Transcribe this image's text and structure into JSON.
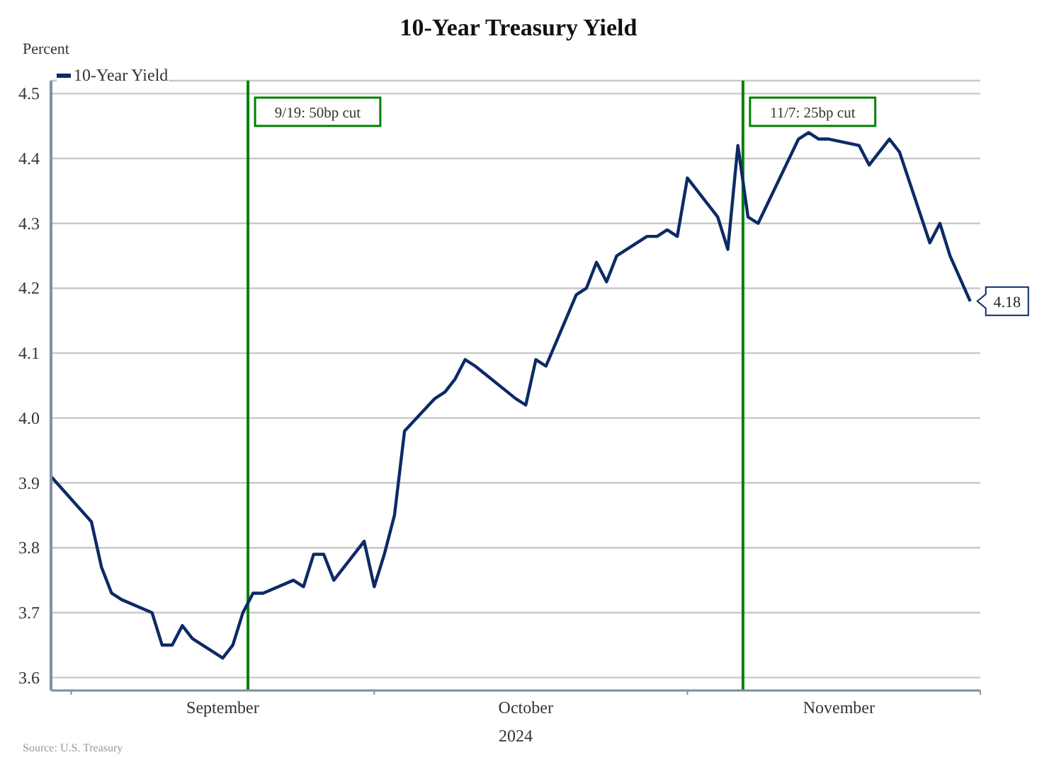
{
  "chart_data": {
    "type": "line",
    "title": "10-Year Treasury Yield",
    "ylabel": "Percent",
    "xlabel": "2024",
    "x": [
      "2024-08-30",
      "2024-09-03",
      "2024-09-04",
      "2024-09-05",
      "2024-09-06",
      "2024-09-09",
      "2024-09-10",
      "2024-09-11",
      "2024-09-12",
      "2024-09-13",
      "2024-09-16",
      "2024-09-17",
      "2024-09-18",
      "2024-09-19",
      "2024-09-20",
      "2024-09-23",
      "2024-09-24",
      "2024-09-25",
      "2024-09-26",
      "2024-09-27",
      "2024-09-30",
      "2024-10-01",
      "2024-10-02",
      "2024-10-03",
      "2024-10-04",
      "2024-10-07",
      "2024-10-08",
      "2024-10-09",
      "2024-10-10",
      "2024-10-11",
      "2024-10-15",
      "2024-10-16",
      "2024-10-17",
      "2024-10-18",
      "2024-10-21",
      "2024-10-22",
      "2024-10-23",
      "2024-10-24",
      "2024-10-25",
      "2024-10-28",
      "2024-10-29",
      "2024-10-30",
      "2024-10-31",
      "2024-11-01",
      "2024-11-04",
      "2024-11-05",
      "2024-11-06",
      "2024-11-07",
      "2024-11-08",
      "2024-11-12",
      "2024-11-13",
      "2024-11-14",
      "2024-11-15",
      "2024-11-18",
      "2024-11-19",
      "2024-11-20",
      "2024-11-21",
      "2024-11-22",
      "2024-11-25",
      "2024-11-26",
      "2024-11-27",
      "2024-11-29"
    ],
    "series": [
      {
        "name": "10-Year Yield",
        "color": "#0d2a66",
        "values": [
          3.91,
          3.84,
          3.77,
          3.73,
          3.72,
          3.7,
          3.65,
          3.65,
          3.68,
          3.66,
          3.63,
          3.65,
          3.7,
          3.73,
          3.73,
          3.75,
          3.74,
          3.79,
          3.79,
          3.75,
          3.81,
          3.74,
          3.79,
          3.85,
          3.98,
          4.03,
          4.04,
          4.06,
          4.09,
          4.08,
          4.03,
          4.02,
          4.09,
          4.08,
          4.19,
          4.2,
          4.24,
          4.21,
          4.25,
          4.28,
          4.28,
          4.29,
          4.28,
          4.37,
          4.31,
          4.26,
          4.42,
          4.31,
          4.3,
          4.43,
          4.44,
          4.43,
          4.43,
          4.42,
          4.39,
          4.41,
          4.43,
          4.41,
          4.27,
          4.3,
          4.25,
          4.18
        ],
        "value_labels": [
          null,
          null,
          null,
          null,
          null,
          null,
          null,
          null,
          null,
          null,
          null,
          null,
          null,
          null,
          null,
          null,
          null,
          null,
          null,
          null,
          null,
          null,
          null,
          null,
          null,
          null,
          null,
          null,
          null,
          null,
          null,
          null,
          null,
          null,
          null,
          null,
          null,
          null,
          null,
          null,
          null,
          null,
          null,
          null,
          null,
          null,
          null,
          null,
          null,
          null,
          null,
          null,
          null,
          null,
          null,
          null,
          null,
          null,
          null,
          null,
          null,
          "4.18"
        ]
      }
    ],
    "xlim": [
      "2024-08-30",
      "2024-11-30"
    ],
    "xticks": [
      {
        "value": "2024-09-01",
        "label": null
      },
      {
        "value": "2024-09-16",
        "label": "September"
      },
      {
        "value": "2024-10-01",
        "label": null
      },
      {
        "value": "2024-10-16",
        "label": "October"
      },
      {
        "value": "2024-11-01",
        "label": null
      },
      {
        "value": "2024-11-16",
        "label": "November"
      },
      {
        "value": "2024-11-30",
        "label": null
      }
    ],
    "ylim": [
      3.58,
      4.52
    ],
    "yticks": [
      3.6,
      3.7,
      3.8,
      3.9,
      {
        "value": 4,
        "label": "4.0"
      },
      4.1,
      4.2,
      4.3,
      4.4,
      4.5
    ],
    "ref_lines": [
      {
        "axis": "x",
        "value": "2024-09-18T12:00",
        "label": "9/19: 50bp cut",
        "color": "#008000"
      },
      {
        "axis": "x",
        "value": "2024-11-06T12:00",
        "label": "11/7: 25bp cut",
        "color": "#008000"
      }
    ],
    "annotations": [
      "Source: U.S. Treasury"
    ],
    "grid": "y",
    "legend": "top left",
    "marker": "none",
    "line_style": "solid"
  }
}
